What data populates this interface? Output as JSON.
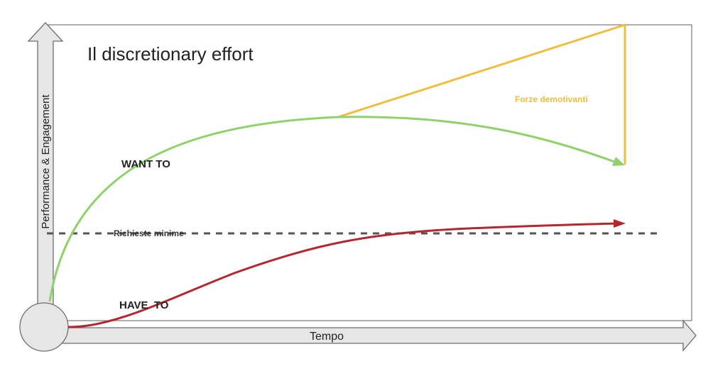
{
  "title": "Il discretionary effort",
  "axes": {
    "y_label": "Performance & Engagement",
    "x_label": "Tempo"
  },
  "labels": {
    "want_to": "WANT TO",
    "have_to": "HAVE  TO",
    "minimum": "Richieste minime",
    "demotivating": "Forze demotivanti"
  },
  "colors": {
    "want_to": "#8fd16a",
    "have_to": "#b5262f",
    "demotivating": "#f0be3c",
    "dashed_line": "#555555",
    "axis_fill": "#e6e6e6",
    "axis_stroke": "#6e6e6e"
  }
}
